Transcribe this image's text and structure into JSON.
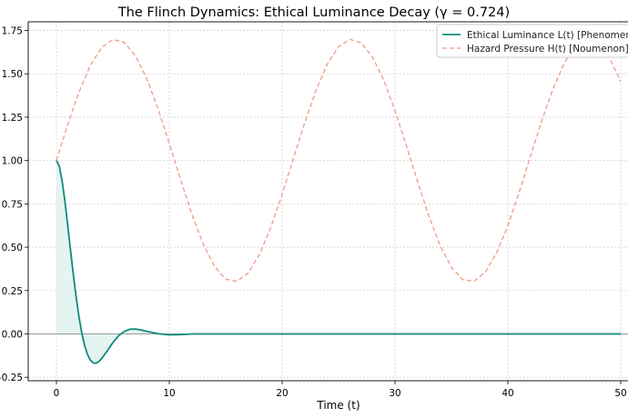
{
  "chart_data": {
    "type": "line",
    "title": "The Flinch Dynamics: Ethical Luminance Decay (γ = 0.724)",
    "xlabel": "Time (t)",
    "ylabel": "",
    "xlim": [
      -2.5,
      52.5
    ],
    "ylim": [
      -0.27,
      1.8
    ],
    "xticks": [
      0,
      10,
      20,
      30,
      40,
      50
    ],
    "yticks": [
      -0.25,
      0.0,
      0.25,
      0.5,
      0.75,
      1.0,
      1.25,
      1.5,
      1.75
    ],
    "ytick_labels": [
      "-0.25",
      "0.00",
      "0.25",
      "0.50",
      "0.75",
      "1.00",
      "1.25",
      "1.50",
      "1.75"
    ],
    "grid": true,
    "legend_position": "top-right",
    "series": [
      {
        "name": "Ethical Luminance L(t) [Phenomenon]",
        "style": "solid",
        "color": "#12897d",
        "fill_to_zero": true,
        "fill_color": "#d8efeb",
        "x": [
          0,
          0.25,
          0.5,
          0.75,
          1,
          1.25,
          1.5,
          1.75,
          2,
          2.25,
          2.5,
          2.75,
          3,
          3.25,
          3.5,
          3.75,
          4,
          4.5,
          5,
          5.5,
          6,
          6.5,
          7,
          7.5,
          8,
          9,
          10,
          11,
          12,
          15,
          20,
          30,
          40,
          50
        ],
        "y": [
          1,
          0.968,
          0.884,
          0.766,
          0.627,
          0.482,
          0.341,
          0.211,
          0.098,
          0.005,
          -0.067,
          -0.118,
          -0.151,
          -0.167,
          -0.169,
          -0.16,
          -0.143,
          -0.098,
          -0.05,
          -0.011,
          0.014,
          0.027,
          0.028,
          0.023,
          0.015,
          0.001,
          -0.005,
          -0.004,
          0,
          0,
          0,
          0,
          0,
          0
        ]
      },
      {
        "name": "Hazard Pressure H(t) [Noumenon]",
        "style": "dashed",
        "color": "#ec9c88",
        "x": [
          0,
          1,
          2,
          3,
          4,
          5,
          6,
          7,
          8,
          9,
          10,
          11,
          12,
          13,
          14,
          15,
          16,
          17,
          18,
          19,
          20,
          21,
          22,
          23,
          24,
          25,
          26,
          27,
          28,
          29,
          30,
          31,
          32,
          33,
          34,
          35,
          36,
          37,
          38,
          39,
          40,
          41,
          42,
          43,
          44,
          45,
          46,
          47,
          48,
          49,
          50
        ],
        "y": [
          1.0,
          1.207,
          1.395,
          1.548,
          1.652,
          1.698,
          1.682,
          1.604,
          1.473,
          1.299,
          1.099,
          0.89,
          0.69,
          0.519,
          0.39,
          0.316,
          0.303,
          0.352,
          0.459,
          0.615,
          0.804,
          1.012,
          1.218,
          1.405,
          1.556,
          1.657,
          1.699,
          1.679,
          1.598,
          1.464,
          1.288,
          1.087,
          0.878,
          0.68,
          0.51,
          0.384,
          0.313,
          0.304,
          0.356,
          0.467,
          0.624,
          0.816,
          1.024,
          1.229,
          1.414,
          1.563,
          1.661,
          1.7,
          1.676,
          1.592,
          1.455
        ]
      }
    ],
    "zero_line_color": "#999999"
  }
}
